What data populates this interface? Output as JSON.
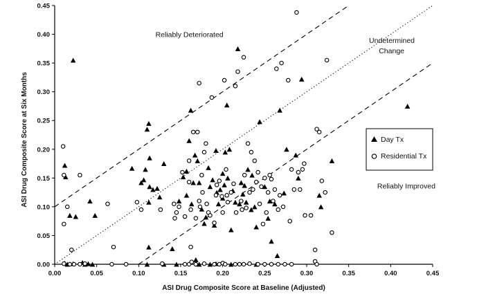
{
  "chart_data": {
    "type": "scatter",
    "xlabel": "ASI Drug Composite Score at Baseline (Adjusted)",
    "ylabel": "ASI Drug Composite Score at Six Months",
    "xlim": [
      0.0,
      0.45
    ],
    "ylim": [
      0.0,
      0.45
    ],
    "x_ticks": [
      "0.00",
      "0.05",
      "0.10",
      "0.15",
      "0.20",
      "0.25",
      "0.30",
      "0.35",
      "0.40",
      "0.45"
    ],
    "y_ticks": [
      "0.00",
      "0.05",
      "0.10",
      "0.15",
      "0.20",
      "0.25",
      "0.30",
      "0.35",
      "0.40",
      "0.45"
    ],
    "grid": false,
    "legend_position": "right",
    "annotations": [
      {
        "text": "Reliably Deteriorated",
        "x": 0.12,
        "y": 0.395
      },
      {
        "text": "Undetermined",
        "x": 0.376,
        "y": 0.385
      },
      {
        "text": "Change",
        "x": 0.376,
        "y": 0.367
      },
      {
        "text": "Reliably Improved",
        "x": 0.384,
        "y": 0.132
      }
    ],
    "reference_lines": [
      {
        "style": "dashed",
        "intercept": 0.1,
        "slope": 1
      },
      {
        "style": "dotted",
        "intercept": 0.0,
        "slope": 1
      },
      {
        "style": "dashed",
        "intercept": -0.1,
        "slope": 1
      }
    ],
    "series": [
      {
        "name": "Day Tx",
        "marker": "filled-triangle",
        "points": [
          [
            0.012,
            0.172
          ],
          [
            0.013,
            0.152
          ],
          [
            0.018,
            0.085
          ],
          [
            0.022,
            0.355
          ],
          [
            0.025,
            0.083
          ],
          [
            0.042,
            0.11
          ],
          [
            0.048,
            0.085
          ],
          [
            0.092,
            0.167
          ],
          [
            0.103,
            0.142
          ],
          [
            0.106,
            0.147
          ],
          [
            0.108,
            0.165
          ],
          [
            0.11,
            0.235
          ],
          [
            0.112,
            0.245
          ],
          [
            0.113,
            0.135
          ],
          [
            0.113,
            0.185
          ],
          [
            0.117,
            0.13
          ],
          [
            0.122,
            0.132
          ],
          [
            0.125,
            0.117
          ],
          [
            0.112,
            0.108
          ],
          [
            0.13,
            0.175
          ],
          [
            0.112,
            0.03
          ],
          [
            0.14,
            0.027
          ],
          [
            0.148,
            0.11
          ],
          [
            0.153,
            0.152
          ],
          [
            0.157,
            0.162
          ],
          [
            0.157,
            0.12
          ],
          [
            0.16,
            0.215
          ],
          [
            0.162,
            0.268
          ],
          [
            0.163,
            0.105
          ],
          [
            0.165,
            0.142
          ],
          [
            0.167,
            0.19
          ],
          [
            0.17,
            0.18
          ],
          [
            0.172,
            0.142
          ],
          [
            0.175,
            0.096
          ],
          [
            0.178,
            0.071
          ],
          [
            0.18,
            0.082
          ],
          [
            0.183,
            0.168
          ],
          [
            0.185,
            0.135
          ],
          [
            0.188,
            0.147
          ],
          [
            0.19,
            0.068
          ],
          [
            0.192,
            0.198
          ],
          [
            0.193,
            0.125
          ],
          [
            0.195,
            0.105
          ],
          [
            0.197,
            0.13
          ],
          [
            0.2,
            0.115
          ],
          [
            0.2,
            0.158
          ],
          [
            0.202,
            0.138
          ],
          [
            0.203,
            0.195
          ],
          [
            0.205,
            0.277
          ],
          [
            0.206,
            0.15
          ],
          [
            0.208,
            0.2
          ],
          [
            0.21,
            0.06
          ],
          [
            0.212,
            0.128
          ],
          [
            0.215,
            0.108
          ],
          [
            0.218,
            0.375
          ],
          [
            0.22,
            0.105
          ],
          [
            0.222,
            0.142
          ],
          [
            0.224,
            0.122
          ],
          [
            0.226,
            0.137
          ],
          [
            0.228,
            0.108
          ],
          [
            0.23,
            0.165
          ],
          [
            0.234,
            0.095
          ],
          [
            0.235,
            0.155
          ],
          [
            0.238,
            0.1
          ],
          [
            0.24,
            0.065
          ],
          [
            0.244,
            0.248
          ],
          [
            0.25,
            0.135
          ],
          [
            0.254,
            0.08
          ],
          [
            0.256,
            0.11
          ],
          [
            0.258,
            0.04
          ],
          [
            0.262,
            0.105
          ],
          [
            0.265,
            0.015
          ],
          [
            0.268,
            0.268
          ],
          [
            0.273,
            0.124
          ],
          [
            0.276,
            0.2
          ],
          [
            0.287,
            0.19
          ],
          [
            0.29,
            0.15
          ],
          [
            0.294,
            0.322
          ],
          [
            0.315,
            0.12
          ],
          [
            0.317,
            0.1
          ],
          [
            0.33,
            0.18
          ],
          [
            0.42,
            0.275
          ],
          [
            0.012,
            0.002
          ],
          [
            0.015,
            0.0
          ],
          [
            0.022,
            0.001
          ],
          [
            0.033,
            0.003
          ],
          [
            0.036,
            0.0
          ],
          [
            0.04,
            0.001
          ],
          [
            0.045,
            0.0
          ],
          [
            0.11,
            0.0
          ],
          [
            0.13,
            0.0
          ],
          [
            0.145,
            0.0
          ],
          [
            0.168,
            0.008
          ],
          [
            0.172,
            0.0
          ],
          [
            0.185,
            0.0
          ],
          [
            0.192,
            0.001
          ],
          [
            0.21,
            0.0
          ],
          [
            0.24,
            0.0
          ]
        ]
      },
      {
        "name": "Residential Tx",
        "marker": "open-circle",
        "points": [
          [
            0.01,
            0.205
          ],
          [
            0.011,
            0.155
          ],
          [
            0.011,
            0.07
          ],
          [
            0.015,
            0.1
          ],
          [
            0.02,
            0.025
          ],
          [
            0.03,
            0.155
          ],
          [
            0.063,
            0.105
          ],
          [
            0.07,
            0.03
          ],
          [
            0.098,
            0.108
          ],
          [
            0.103,
            0.095
          ],
          [
            0.126,
            0.095
          ],
          [
            0.142,
            0.105
          ],
          [
            0.143,
            0.08
          ],
          [
            0.145,
            0.09
          ],
          [
            0.148,
            0.1
          ],
          [
            0.152,
            0.16
          ],
          [
            0.155,
            0.083
          ],
          [
            0.16,
            0.18
          ],
          [
            0.16,
            0.143
          ],
          [
            0.162,
            0.095
          ],
          [
            0.162,
            0.03
          ],
          [
            0.165,
            0.23
          ],
          [
            0.168,
            0.08
          ],
          [
            0.17,
            0.23
          ],
          [
            0.172,
            0.315
          ],
          [
            0.172,
            0.11
          ],
          [
            0.173,
            0.1
          ],
          [
            0.175,
            0.155
          ],
          [
            0.176,
            0.125
          ],
          [
            0.178,
            0.195
          ],
          [
            0.18,
            0.21
          ],
          [
            0.181,
            0.105
          ],
          [
            0.183,
            0.09
          ],
          [
            0.185,
            0.085
          ],
          [
            0.187,
            0.29
          ],
          [
            0.19,
            0.072
          ],
          [
            0.192,
            0.12
          ],
          [
            0.193,
            0.138
          ],
          [
            0.196,
            0.145
          ],
          [
            0.199,
            0.118
          ],
          [
            0.2,
            0.09
          ],
          [
            0.202,
            0.32
          ],
          [
            0.204,
            0.165
          ],
          [
            0.205,
            0.12
          ],
          [
            0.206,
            0.108
          ],
          [
            0.21,
            0.125
          ],
          [
            0.213,
            0.14
          ],
          [
            0.215,
            0.31
          ],
          [
            0.216,
            0.09
          ],
          [
            0.218,
            0.335
          ],
          [
            0.222,
            0.11
          ],
          [
            0.223,
            0.095
          ],
          [
            0.225,
            0.36
          ],
          [
            0.226,
            0.155
          ],
          [
            0.228,
            0.098
          ],
          [
            0.23,
            0.21
          ],
          [
            0.232,
            0.125
          ],
          [
            0.234,
            0.195
          ],
          [
            0.236,
            0.13
          ],
          [
            0.238,
            0.18
          ],
          [
            0.24,
            0.143
          ],
          [
            0.242,
            0.16
          ],
          [
            0.244,
            0.105
          ],
          [
            0.246,
            0.135
          ],
          [
            0.248,
            0.07
          ],
          [
            0.25,
            0.15
          ],
          [
            0.252,
            0.09
          ],
          [
            0.254,
            0.125
          ],
          [
            0.256,
            0.155
          ],
          [
            0.258,
            0.148
          ],
          [
            0.26,
            0.11
          ],
          [
            0.262,
            0.13
          ],
          [
            0.264,
            0.34
          ],
          [
            0.266,
            0.095
          ],
          [
            0.268,
            0.12
          ],
          [
            0.27,
            0.35
          ],
          [
            0.272,
            0.1
          ],
          [
            0.278,
            0.32
          ],
          [
            0.28,
            0.075
          ],
          [
            0.282,
            0.165
          ],
          [
            0.285,
            0.13
          ],
          [
            0.288,
            0.438
          ],
          [
            0.29,
            0.16
          ],
          [
            0.292,
            0.13
          ],
          [
            0.295,
            0.165
          ],
          [
            0.297,
            0.175
          ],
          [
            0.298,
            0.085
          ],
          [
            0.305,
            0.085
          ],
          [
            0.31,
            0.025
          ],
          [
            0.312,
            0.235
          ],
          [
            0.315,
            0.23
          ],
          [
            0.318,
            0.145
          ],
          [
            0.322,
            0.125
          ],
          [
            0.324,
            0.355
          ],
          [
            0.33,
            0.055
          ],
          [
            0.011,
            0.001
          ],
          [
            0.018,
            0.0
          ],
          [
            0.023,
            0.0
          ],
          [
            0.03,
            0.0
          ],
          [
            0.036,
            0.001
          ],
          [
            0.068,
            0.0
          ],
          [
            0.085,
            0.0
          ],
          [
            0.128,
            0.001
          ],
          [
            0.155,
            0.0
          ],
          [
            0.16,
            0.0
          ],
          [
            0.163,
            0.004
          ],
          [
            0.168,
            0.0
          ],
          [
            0.178,
            0.001
          ],
          [
            0.19,
            0.0
          ],
          [
            0.196,
            0.0
          ],
          [
            0.2,
            0.002
          ],
          [
            0.203,
            0.0
          ],
          [
            0.215,
            0.0
          ],
          [
            0.22,
            0.0
          ],
          [
            0.225,
            0.0
          ],
          [
            0.232,
            0.001
          ],
          [
            0.242,
            0.0
          ],
          [
            0.25,
            0.0
          ],
          [
            0.258,
            0.0
          ],
          [
            0.266,
            0.0
          ],
          [
            0.274,
            0.0
          ],
          [
            0.282,
            0.0
          ],
          [
            0.31,
            0.005
          ],
          [
            0.312,
            0.0
          ]
        ]
      }
    ]
  }
}
